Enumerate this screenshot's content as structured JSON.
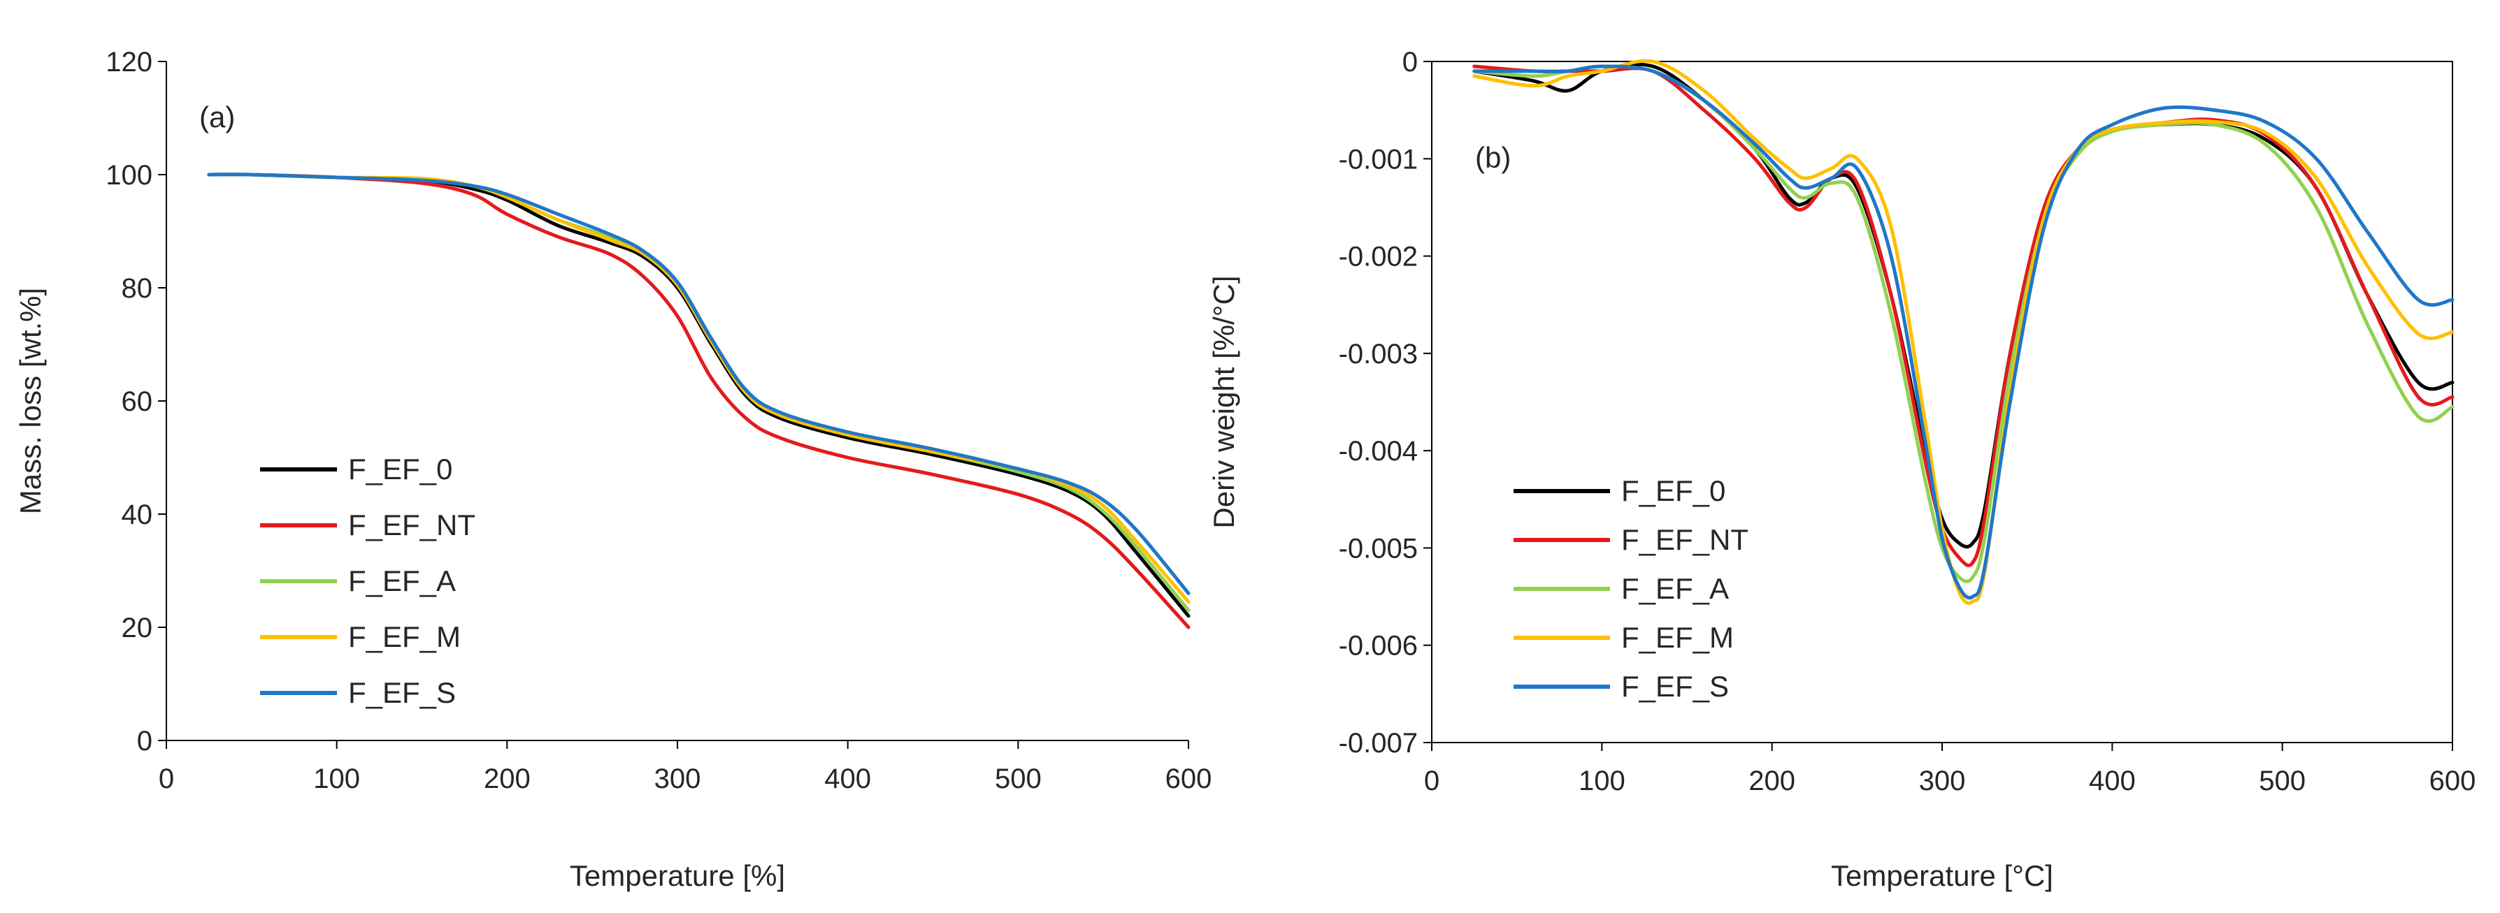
{
  "chart_data": [
    {
      "type": "line",
      "panel_label": "(a)",
      "xlabel": "Temperature [%]",
      "ylabel": "Mass. loss [wt.%]",
      "xlim": [
        0,
        600
      ],
      "ylim": [
        0,
        120
      ],
      "xticks": [
        0,
        100,
        200,
        300,
        400,
        500,
        600
      ],
      "yticks": [
        0,
        20,
        40,
        60,
        80,
        100,
        120
      ],
      "xtick_labels": [
        "0",
        "100",
        "200",
        "300",
        "400",
        "500",
        "600"
      ],
      "ytick_labels": [
        "0",
        "20",
        "40",
        "60",
        "80",
        "100",
        "120"
      ],
      "grid": false,
      "legend": "lower-left",
      "series": [
        {
          "name": "F_EF_0",
          "color": "#000000",
          "x": [
            25,
            50,
            100,
            150,
            180,
            200,
            230,
            260,
            280,
            300,
            320,
            340,
            360,
            400,
            450,
            500,
            530,
            550,
            570,
            600
          ],
          "y": [
            100,
            100,
            99.5,
            99,
            97.5,
            95.5,
            91,
            88,
            85.5,
            80,
            70,
            61,
            57,
            53.5,
            50.5,
            47,
            44,
            40,
            33,
            22
          ]
        },
        {
          "name": "F_EF_NT",
          "color": "#e41a1c",
          "x": [
            25,
            50,
            100,
            150,
            180,
            200,
            230,
            260,
            280,
            300,
            320,
            340,
            360,
            400,
            450,
            500,
            530,
            550,
            570,
            600
          ],
          "y": [
            100,
            100,
            99.5,
            98.5,
            96.5,
            93,
            89,
            86,
            82,
            75,
            64,
            57,
            53.5,
            50,
            47,
            43.5,
            40,
            36,
            30,
            20
          ]
        },
        {
          "name": "F_EF_A",
          "color": "#92d050",
          "x": [
            25,
            50,
            100,
            150,
            180,
            200,
            230,
            260,
            280,
            300,
            320,
            340,
            360,
            400,
            450,
            500,
            530,
            550,
            570,
            600
          ],
          "y": [
            100,
            100,
            99.5,
            99.3,
            98,
            96,
            92,
            89,
            86.5,
            81,
            71,
            61.5,
            57.5,
            54,
            51,
            47.5,
            44.5,
            40.5,
            34,
            23
          ]
        },
        {
          "name": "F_EF_M",
          "color": "#ffc000",
          "x": [
            25,
            50,
            100,
            150,
            180,
            200,
            230,
            260,
            280,
            300,
            320,
            340,
            360,
            400,
            450,
            500,
            530,
            550,
            570,
            600
          ],
          "y": [
            100,
            100,
            99.5,
            99.3,
            98,
            96,
            92,
            88.5,
            86,
            80.5,
            70.5,
            61.5,
            57.5,
            54,
            51,
            48,
            45,
            41.5,
            35,
            24.5
          ]
        },
        {
          "name": "F_EF_S",
          "color": "#1f77c8",
          "x": [
            25,
            50,
            100,
            150,
            180,
            200,
            230,
            260,
            280,
            300,
            320,
            340,
            360,
            400,
            450,
            500,
            530,
            550,
            570,
            600
          ],
          "y": [
            100,
            100,
            99.5,
            99,
            98,
            96.5,
            93,
            89.5,
            86.5,
            81,
            71,
            62,
            58,
            54.5,
            51.5,
            48,
            45.5,
            42.5,
            37,
            26
          ]
        }
      ]
    },
    {
      "type": "line",
      "panel_label": "(b)",
      "xlabel": "Temperature [°C]",
      "ylabel": "Deriv weight [%/°C]",
      "xlim": [
        0,
        600
      ],
      "ylim": [
        -0.007,
        0
      ],
      "xticks": [
        0,
        100,
        200,
        300,
        400,
        500,
        600
      ],
      "yticks": [
        0,
        -0.001,
        -0.002,
        -0.003,
        -0.004,
        -0.005,
        -0.006,
        -0.007
      ],
      "xtick_labels": [
        "0",
        "100",
        "200",
        "300",
        "400",
        "500",
        "600"
      ],
      "ytick_labels": [
        "0",
        "-0.001",
        "-0.002",
        "-0.003",
        "-0.004",
        "-0.005",
        "-0.006",
        "-0.007"
      ],
      "grid": false,
      "legend": "lower-left",
      "series": [
        {
          "name": "F_EF_0",
          "color": "#000000",
          "x": [
            25,
            60,
            80,
            100,
            130,
            160,
            190,
            210,
            220,
            235,
            250,
            270,
            290,
            300,
            310,
            318,
            325,
            340,
            360,
            380,
            400,
            430,
            460,
            490,
            520,
            550,
            580,
            600
          ],
          "y": [
            -0.0001,
            -0.0002,
            -0.0003,
            -0.0001,
            -5e-05,
            -0.0004,
            -0.0009,
            -0.0014,
            -0.00145,
            -0.0012,
            -0.0013,
            -0.0024,
            -0.004,
            -0.0047,
            -0.00495,
            -0.00495,
            -0.0046,
            -0.003,
            -0.0015,
            -0.0009,
            -0.0007,
            -0.00065,
            -0.00065,
            -0.0008,
            -0.0013,
            -0.0024,
            -0.0033,
            -0.0033
          ]
        },
        {
          "name": "F_EF_NT",
          "color": "#e41a1c",
          "x": [
            25,
            60,
            80,
            100,
            130,
            160,
            190,
            210,
            220,
            235,
            250,
            270,
            290,
            300,
            310,
            318,
            325,
            340,
            360,
            380,
            400,
            430,
            460,
            490,
            520,
            550,
            580,
            600
          ],
          "y": [
            -5e-05,
            -0.0001,
            -0.0001,
            -0.0001,
            -0.0001,
            -0.0005,
            -0.001,
            -0.00145,
            -0.0015,
            -0.0012,
            -0.00125,
            -0.0024,
            -0.0041,
            -0.0048,
            -0.0051,
            -0.00515,
            -0.0047,
            -0.003,
            -0.0015,
            -0.0009,
            -0.0007,
            -0.00063,
            -0.0006,
            -0.00075,
            -0.0013,
            -0.0024,
            -0.00345,
            -0.00345
          ]
        },
        {
          "name": "F_EF_A",
          "color": "#92d050",
          "x": [
            25,
            60,
            80,
            100,
            130,
            160,
            190,
            210,
            220,
            235,
            250,
            270,
            290,
            300,
            310,
            318,
            325,
            340,
            360,
            380,
            400,
            430,
            460,
            490,
            520,
            550,
            580,
            600
          ],
          "y": [
            -0.0001,
            -0.00015,
            -0.0001,
            -5e-05,
            -0.0001,
            -0.0004,
            -0.0009,
            -0.0013,
            -0.0014,
            -0.00125,
            -0.0014,
            -0.0026,
            -0.0043,
            -0.005,
            -0.0053,
            -0.0053,
            -0.0049,
            -0.0032,
            -0.0016,
            -0.00095,
            -0.00072,
            -0.00065,
            -0.00065,
            -0.00085,
            -0.0015,
            -0.0027,
            -0.00365,
            -0.00355
          ]
        },
        {
          "name": "F_EF_M",
          "color": "#ffc000",
          "x": [
            25,
            60,
            80,
            100,
            130,
            160,
            190,
            210,
            220,
            235,
            250,
            270,
            290,
            300,
            310,
            318,
            325,
            340,
            360,
            380,
            400,
            430,
            460,
            490,
            520,
            550,
            580,
            600
          ],
          "y": [
            -0.00015,
            -0.00025,
            -0.00015,
            -0.0001,
            0.0,
            -0.0003,
            -0.0008,
            -0.0011,
            -0.0012,
            -0.0011,
            -0.001,
            -0.0017,
            -0.0037,
            -0.0048,
            -0.00545,
            -0.00555,
            -0.00525,
            -0.0034,
            -0.0016,
            -0.0009,
            -0.0007,
            -0.00063,
            -0.00062,
            -0.00073,
            -0.0012,
            -0.0021,
            -0.0028,
            -0.00278
          ]
        },
        {
          "name": "F_EF_S",
          "color": "#1f77c8",
          "x": [
            25,
            60,
            80,
            100,
            130,
            160,
            190,
            210,
            220,
            235,
            250,
            270,
            290,
            300,
            310,
            318,
            325,
            340,
            360,
            380,
            400,
            430,
            460,
            490,
            520,
            550,
            580,
            600
          ],
          "y": [
            -0.0001,
            -0.0001,
            -0.0001,
            -5e-05,
            -0.0001,
            -0.0004,
            -0.00085,
            -0.0012,
            -0.0013,
            -0.0012,
            -0.0011,
            -0.002,
            -0.0039,
            -0.0049,
            -0.0054,
            -0.0055,
            -0.0052,
            -0.0035,
            -0.0017,
            -0.0009,
            -0.00065,
            -0.00048,
            -0.0005,
            -0.00062,
            -0.001,
            -0.00175,
            -0.00245,
            -0.00245
          ]
        }
      ]
    }
  ]
}
